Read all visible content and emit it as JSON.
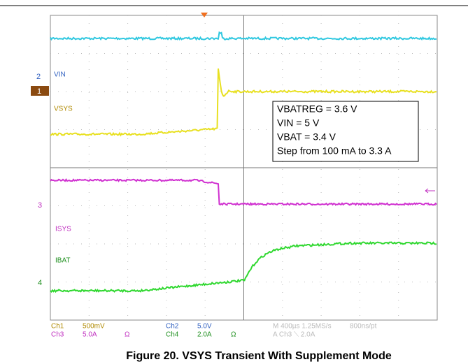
{
  "markers": [
    "2",
    "1",
    "3",
    "4"
  ],
  "trace_labels": {
    "vin": "VIN",
    "vsys": "VSYS",
    "isys": "ISYS",
    "ibat": "IBAT"
  },
  "annotation": [
    "VBATREG = 3.6 V",
    "VIN = 5 V",
    "VBAT = 3.4 V",
    "Step from 100 mA to 3.3 A"
  ],
  "readout": {
    "row1": [
      "Ch1",
      "500mV",
      "Ch2",
      "5.0V",
      "M 400µs 1.25MS/s",
      "800ns/pt"
    ],
    "row2": [
      "Ch3",
      "5.0A",
      "Ω",
      "Ch4",
      "2.0A",
      "Ω",
      "A  Ch3  ⟍  2.0A"
    ]
  },
  "caption": "Figure 20. VSYS Transient With Supplement Mode"
}
